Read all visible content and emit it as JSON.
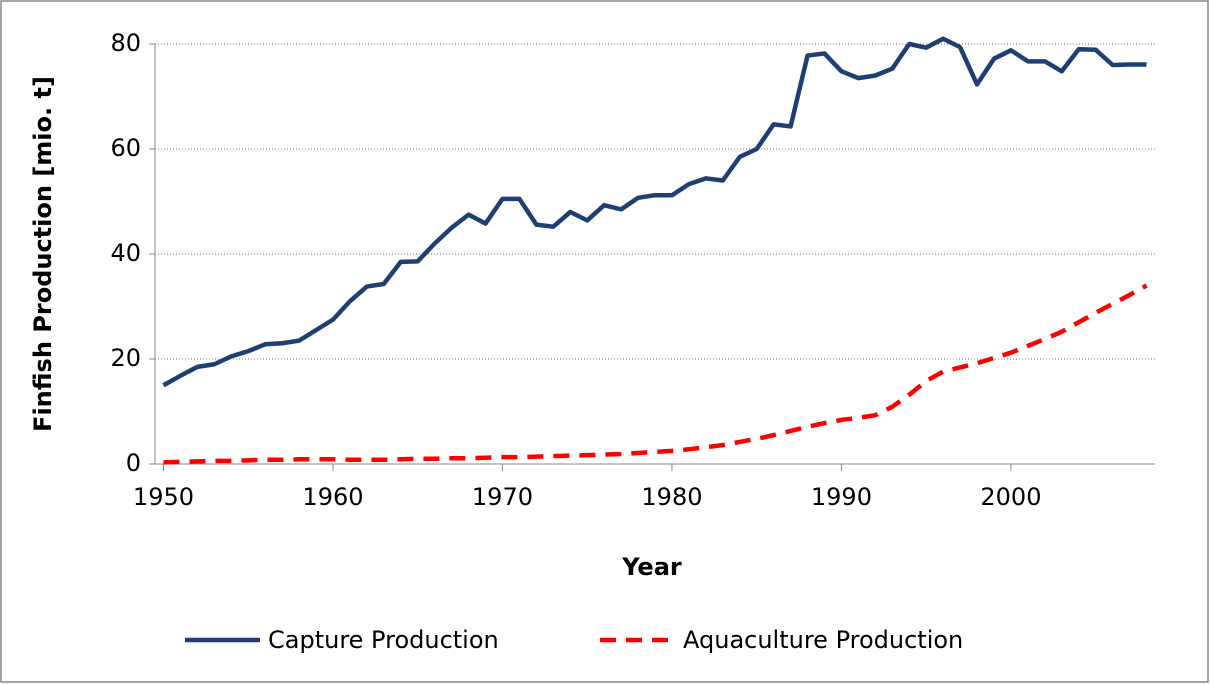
{
  "chart_data": {
    "type": "line",
    "xlabel": "Year",
    "ylabel": "Finfish Production [mio. t]",
    "x": [
      1950,
      1951,
      1952,
      1953,
      1954,
      1955,
      1956,
      1957,
      1958,
      1959,
      1960,
      1961,
      1962,
      1963,
      1964,
      1965,
      1966,
      1967,
      1968,
      1969,
      1970,
      1971,
      1972,
      1973,
      1974,
      1975,
      1976,
      1977,
      1978,
      1979,
      1980,
      1981,
      1982,
      1983,
      1984,
      1985,
      1986,
      1987,
      1988,
      1989,
      1990,
      1991,
      1992,
      1993,
      1994,
      1995,
      1996,
      1997,
      1998,
      1999,
      2000,
      2001,
      2002,
      2003,
      2004,
      2005,
      2006,
      2007,
      2008
    ],
    "series": [
      {
        "name": "Capture Production",
        "color": "#1f3f73",
        "dash": false,
        "values": [
          15,
          16.8,
          18.5,
          19,
          20.5,
          21.5,
          22.8,
          23,
          23.5,
          25.5,
          27.5,
          31,
          33.8,
          34.3,
          38.5,
          38.6,
          42,
          45,
          47.5,
          45.8,
          50.5,
          50.5,
          45.6,
          45.2,
          48,
          46.4,
          49.3,
          48.5,
          50.7,
          51.2,
          51.2,
          53.3,
          54.4,
          54,
          58.5,
          60,
          64.7,
          64.3,
          77.8,
          78.2,
          74.8,
          73.5,
          74,
          75.3,
          80,
          79.3,
          81,
          79.4,
          72.3,
          77.2,
          78.8,
          76.7,
          76.7,
          74.8,
          79,
          78.9,
          76,
          76.1,
          76.1
        ]
      },
      {
        "name": "Aquaculture Production",
        "color": "#ff0000",
        "dash": true,
        "values": [
          0.3,
          0.4,
          0.5,
          0.6,
          0.6,
          0.7,
          0.8,
          0.8,
          0.9,
          0.9,
          0.9,
          0.8,
          0.8,
          0.8,
          0.9,
          1.0,
          1.0,
          1.1,
          1.1,
          1.2,
          1.3,
          1.3,
          1.4,
          1.5,
          1.6,
          1.7,
          1.8,
          1.9,
          2.1,
          2.3,
          2.5,
          2.8,
          3.2,
          3.6,
          4.2,
          4.8,
          5.5,
          6.3,
          7.1,
          7.8,
          8.4,
          8.8,
          9.3,
          10.9,
          13.2,
          15.8,
          17.6,
          18.4,
          19.2,
          20.2,
          21.2,
          22.5,
          23.8,
          25.2,
          27.0,
          28.8,
          30.5,
          32.2,
          34.0
        ]
      }
    ],
    "xlim": [
      1949.5,
      2008.5
    ],
    "xticks": [
      1950,
      1960,
      1970,
      1980,
      1990,
      2000
    ],
    "ylim": [
      0,
      80
    ],
    "yticks": [
      0,
      20,
      40,
      60,
      80
    ],
    "grid": true,
    "legend": "bottom"
  }
}
